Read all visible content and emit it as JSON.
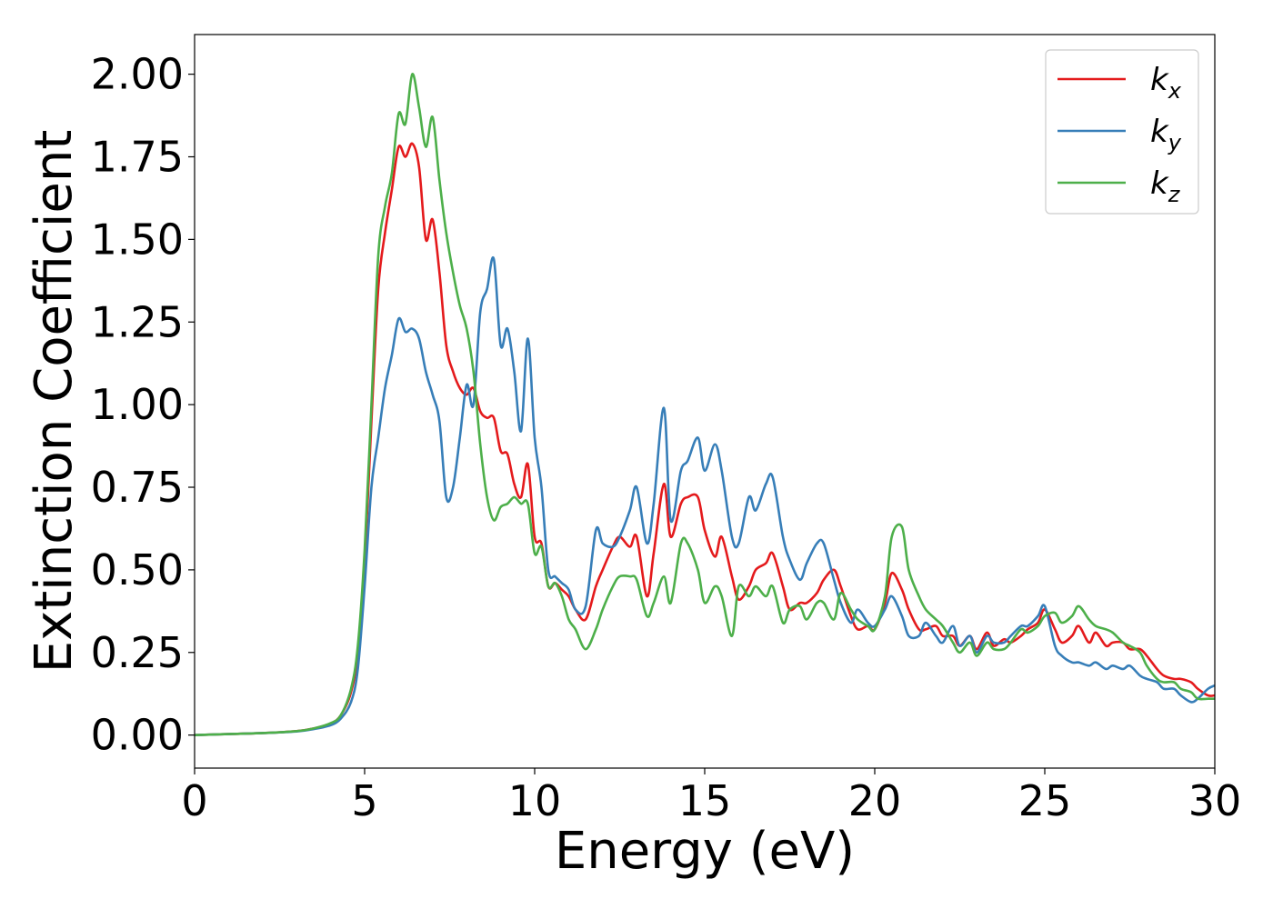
{
  "chart_data": {
    "type": "line",
    "title": "",
    "xlabel": "Energy (eV)",
    "ylabel": "Extinction Coefficient",
    "xlim": [
      0,
      30
    ],
    "ylim": [
      -0.1,
      2.12
    ],
    "xticks": [
      0,
      5,
      10,
      15,
      20,
      25,
      30
    ],
    "xtick_labels": [
      "0",
      "5",
      "10",
      "15",
      "20",
      "25",
      "30"
    ],
    "yticks": [
      0.0,
      0.25,
      0.5,
      0.75,
      1.0,
      1.25,
      1.5,
      1.75,
      2.0
    ],
    "ytick_labels": [
      "0.00",
      "0.25",
      "0.50",
      "0.75",
      "1.00",
      "1.25",
      "1.50",
      "1.75",
      "2.00"
    ],
    "grid": false,
    "legend_position": "top-right",
    "series": [
      {
        "name": "k_x",
        "legend_base": "k",
        "legend_sub": "x",
        "color": "#e41a1c",
        "x": [
          0,
          1,
          2,
          3,
          3.5,
          4,
          4.3,
          4.6,
          4.8,
          5.0,
          5.2,
          5.4,
          5.6,
          5.8,
          6.0,
          6.2,
          6.4,
          6.6,
          6.8,
          7.0,
          7.2,
          7.4,
          7.6,
          7.8,
          8.0,
          8.2,
          8.4,
          8.6,
          8.8,
          9.0,
          9.2,
          9.4,
          9.6,
          9.8,
          10.0,
          10.2,
          10.4,
          10.6,
          10.8,
          11.0,
          11.2,
          11.5,
          11.8,
          12.0,
          12.3,
          12.5,
          12.8,
          13.0,
          13.3,
          13.5,
          13.8,
          14.0,
          14.3,
          14.5,
          14.8,
          15.0,
          15.3,
          15.5,
          15.8,
          16.0,
          16.3,
          16.5,
          16.8,
          17.0,
          17.3,
          17.5,
          17.8,
          18.0,
          18.3,
          18.5,
          18.8,
          19.0,
          19.3,
          19.5,
          19.8,
          20.0,
          20.3,
          20.5,
          20.8,
          21.0,
          21.3,
          21.5,
          21.8,
          22.0,
          22.3,
          22.5,
          22.8,
          23.0,
          23.3,
          23.5,
          23.8,
          24.0,
          24.3,
          24.5,
          24.8,
          25.0,
          25.3,
          25.5,
          25.8,
          26.0,
          26.3,
          26.5,
          26.8,
          27.0,
          27.3,
          27.5,
          27.8,
          28.0,
          28.3,
          28.5,
          28.8,
          29.0,
          29.3,
          29.5,
          29.8,
          30.0
        ],
        "y": [
          0.0,
          0.003,
          0.006,
          0.012,
          0.02,
          0.035,
          0.06,
          0.13,
          0.25,
          0.52,
          0.95,
          1.35,
          1.52,
          1.65,
          1.78,
          1.75,
          1.79,
          1.72,
          1.5,
          1.56,
          1.4,
          1.18,
          1.1,
          1.05,
          1.03,
          1.05,
          0.98,
          0.96,
          0.96,
          0.86,
          0.85,
          0.76,
          0.72,
          0.82,
          0.6,
          0.58,
          0.45,
          0.46,
          0.44,
          0.42,
          0.38,
          0.35,
          0.45,
          0.5,
          0.57,
          0.6,
          0.57,
          0.6,
          0.42,
          0.55,
          0.76,
          0.6,
          0.7,
          0.72,
          0.72,
          0.62,
          0.54,
          0.6,
          0.48,
          0.41,
          0.45,
          0.5,
          0.52,
          0.55,
          0.45,
          0.38,
          0.4,
          0.4,
          0.43,
          0.47,
          0.5,
          0.45,
          0.36,
          0.32,
          0.33,
          0.32,
          0.4,
          0.49,
          0.44,
          0.38,
          0.32,
          0.32,
          0.33,
          0.3,
          0.3,
          0.27,
          0.3,
          0.26,
          0.31,
          0.27,
          0.29,
          0.28,
          0.3,
          0.32,
          0.34,
          0.38,
          0.32,
          0.28,
          0.3,
          0.33,
          0.28,
          0.31,
          0.27,
          0.28,
          0.28,
          0.26,
          0.26,
          0.24,
          0.2,
          0.18,
          0.17,
          0.17,
          0.16,
          0.14,
          0.12,
          0.12
        ],
        "endpoint_note": ""
      },
      {
        "name": "k_y",
        "legend_base": "k",
        "legend_sub": "y",
        "color": "#377eb8",
        "x": [
          0,
          1,
          2,
          3,
          3.5,
          4,
          4.3,
          4.6,
          4.8,
          5.0,
          5.2,
          5.4,
          5.6,
          5.8,
          6.0,
          6.2,
          6.4,
          6.6,
          6.8,
          7.0,
          7.2,
          7.4,
          7.6,
          7.8,
          8.0,
          8.2,
          8.4,
          8.6,
          8.8,
          9.0,
          9.2,
          9.4,
          9.6,
          9.8,
          10.0,
          10.2,
          10.4,
          10.6,
          10.8,
          11.0,
          11.2,
          11.5,
          11.8,
          12.0,
          12.3,
          12.5,
          12.8,
          13.0,
          13.3,
          13.5,
          13.8,
          14.0,
          14.3,
          14.5,
          14.8,
          15.0,
          15.3,
          15.5,
          15.8,
          16.0,
          16.3,
          16.5,
          16.8,
          17.0,
          17.3,
          17.5,
          17.8,
          18.0,
          18.3,
          18.5,
          18.8,
          19.0,
          19.3,
          19.5,
          19.8,
          20.0,
          20.3,
          20.5,
          20.8,
          21.0,
          21.3,
          21.5,
          21.8,
          22.0,
          22.3,
          22.5,
          22.8,
          23.0,
          23.3,
          23.5,
          23.8,
          24.0,
          24.3,
          24.5,
          24.8,
          25.0,
          25.3,
          25.5,
          25.8,
          26.0,
          26.3,
          26.5,
          26.8,
          27.0,
          27.3,
          27.5,
          27.8,
          28.0,
          28.3,
          28.5,
          28.8,
          29.0,
          29.3,
          29.5,
          29.8,
          30.0
        ],
        "y": [
          0.0,
          0.003,
          0.006,
          0.011,
          0.018,
          0.03,
          0.05,
          0.1,
          0.2,
          0.45,
          0.75,
          0.9,
          1.05,
          1.15,
          1.26,
          1.22,
          1.23,
          1.2,
          1.1,
          1.03,
          0.95,
          0.72,
          0.75,
          0.9,
          1.06,
          1.0,
          1.28,
          1.35,
          1.44,
          1.18,
          1.23,
          1.1,
          0.92,
          1.2,
          0.9,
          0.75,
          0.5,
          0.48,
          0.46,
          0.44,
          0.38,
          0.39,
          0.62,
          0.58,
          0.57,
          0.6,
          0.68,
          0.75,
          0.58,
          0.7,
          0.99,
          0.65,
          0.8,
          0.83,
          0.9,
          0.8,
          0.88,
          0.8,
          0.6,
          0.58,
          0.72,
          0.68,
          0.76,
          0.78,
          0.6,
          0.53,
          0.47,
          0.52,
          0.58,
          0.58,
          0.47,
          0.4,
          0.34,
          0.38,
          0.34,
          0.33,
          0.38,
          0.42,
          0.36,
          0.3,
          0.3,
          0.34,
          0.3,
          0.28,
          0.33,
          0.27,
          0.3,
          0.25,
          0.3,
          0.28,
          0.28,
          0.3,
          0.33,
          0.33,
          0.36,
          0.39,
          0.27,
          0.24,
          0.22,
          0.22,
          0.21,
          0.22,
          0.2,
          0.21,
          0.2,
          0.21,
          0.18,
          0.17,
          0.16,
          0.14,
          0.14,
          0.12,
          0.1,
          0.11,
          0.14,
          0.15
        ],
        "endpoint_note": ""
      },
      {
        "name": "k_z",
        "legend_base": "k",
        "legend_sub": "z",
        "color": "#4daf4a",
        "x": [
          0,
          1,
          2,
          3,
          3.5,
          4,
          4.3,
          4.6,
          4.8,
          5.0,
          5.2,
          5.4,
          5.6,
          5.8,
          6.0,
          6.2,
          6.4,
          6.6,
          6.8,
          7.0,
          7.2,
          7.4,
          7.6,
          7.8,
          8.0,
          8.2,
          8.4,
          8.6,
          8.8,
          9.0,
          9.2,
          9.4,
          9.6,
          9.8,
          10.0,
          10.2,
          10.4,
          10.6,
          10.8,
          11.0,
          11.2,
          11.5,
          11.8,
          12.0,
          12.3,
          12.5,
          12.8,
          13.0,
          13.3,
          13.5,
          13.8,
          14.0,
          14.3,
          14.5,
          14.8,
          15.0,
          15.3,
          15.5,
          15.8,
          16.0,
          16.3,
          16.5,
          16.8,
          17.0,
          17.3,
          17.5,
          17.8,
          18.0,
          18.3,
          18.5,
          18.8,
          19.0,
          19.3,
          19.5,
          19.8,
          20.0,
          20.3,
          20.5,
          20.8,
          21.0,
          21.3,
          21.5,
          21.8,
          22.0,
          22.3,
          22.5,
          22.8,
          23.0,
          23.3,
          23.5,
          23.8,
          24.0,
          24.3,
          24.5,
          24.8,
          25.0,
          25.3,
          25.5,
          25.8,
          26.0,
          26.3,
          26.5,
          26.8,
          27.0,
          27.3,
          27.5,
          27.8,
          28.0,
          28.3,
          28.5,
          28.8,
          29.0,
          29.3,
          29.5,
          29.8,
          30.0
        ],
        "y": [
          0.0,
          0.003,
          0.006,
          0.012,
          0.02,
          0.036,
          0.06,
          0.14,
          0.27,
          0.56,
          1.0,
          1.45,
          1.6,
          1.7,
          1.88,
          1.85,
          2.0,
          1.9,
          1.78,
          1.87,
          1.68,
          1.52,
          1.4,
          1.3,
          1.23,
          1.1,
          0.88,
          0.72,
          0.65,
          0.69,
          0.7,
          0.72,
          0.7,
          0.7,
          0.55,
          0.57,
          0.45,
          0.46,
          0.42,
          0.35,
          0.32,
          0.26,
          0.32,
          0.38,
          0.45,
          0.48,
          0.48,
          0.47,
          0.36,
          0.4,
          0.48,
          0.4,
          0.58,
          0.58,
          0.5,
          0.4,
          0.45,
          0.42,
          0.3,
          0.45,
          0.42,
          0.45,
          0.42,
          0.45,
          0.34,
          0.38,
          0.39,
          0.35,
          0.4,
          0.4,
          0.35,
          0.43,
          0.38,
          0.35,
          0.33,
          0.32,
          0.42,
          0.6,
          0.63,
          0.5,
          0.42,
          0.38,
          0.35,
          0.33,
          0.28,
          0.25,
          0.28,
          0.24,
          0.28,
          0.26,
          0.26,
          0.28,
          0.32,
          0.31,
          0.33,
          0.36,
          0.37,
          0.34,
          0.36,
          0.39,
          0.35,
          0.33,
          0.32,
          0.31,
          0.28,
          0.27,
          0.25,
          0.21,
          0.17,
          0.16,
          0.16,
          0.14,
          0.13,
          0.11,
          0.11,
          0.11
        ],
        "endpoint_note": ""
      }
    ]
  }
}
